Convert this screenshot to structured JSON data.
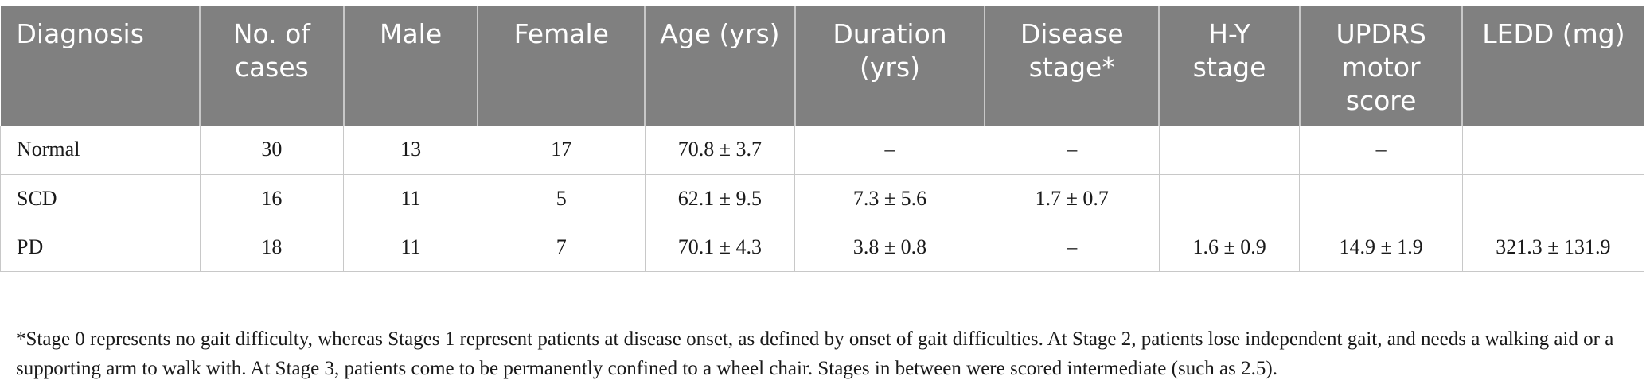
{
  "table": {
    "headers": [
      "Diagnosis",
      "No. of cases",
      "Male",
      "Female",
      "Age (yrs)",
      "Duration (yrs)",
      "Disease stage*",
      "H-Y stage",
      "UPDRS motor score",
      "LEDD (mg)"
    ],
    "rows": [
      [
        "Normal",
        "30",
        "13",
        "17",
        "70.8 ± 3.7",
        "–",
        "–",
        "",
        "–",
        ""
      ],
      [
        "SCD",
        "16",
        "11",
        "5",
        "62.1 ± 9.5",
        "7.3 ± 5.6",
        "1.7 ± 0.7",
        "",
        "",
        ""
      ],
      [
        "PD",
        "18",
        "11",
        "7",
        "70.1 ± 4.3",
        "3.8 ± 0.8",
        "–",
        "1.6 ± 0.9",
        "14.9 ± 1.9",
        "321.3 ± 131.9"
      ]
    ]
  },
  "footnote": "*Stage 0 represents no gait difficulty, whereas Stages 1 represent patients at disease onset, as defined by onset of gait difficulties. At Stage 2, patients lose independent gait, and needs a walking aid or a supporting arm to walk with. At Stage 3, patients come to be permanently confined to a wheel chair. Stages in between were scored intermediate (such as 2.5).",
  "colors": {
    "header_bg": "#808080",
    "header_text": "#ffffff",
    "grid": "#c8c8c8"
  }
}
